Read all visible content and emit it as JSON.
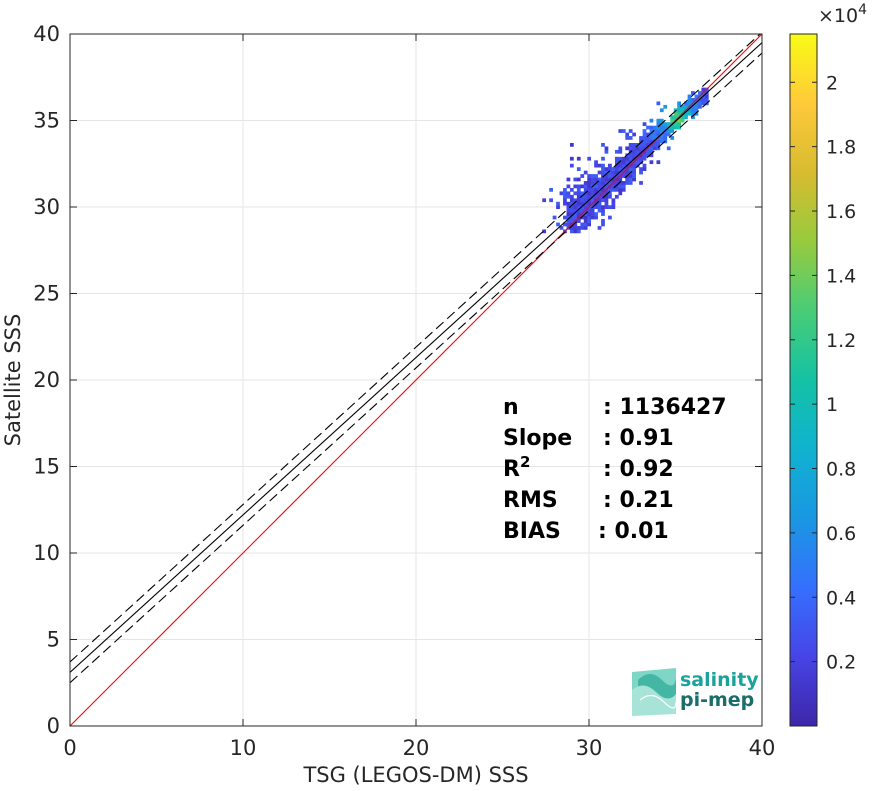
{
  "chart_data": {
    "type": "heatmap",
    "xlabel": "TSG (LEGOS-DM) SSS",
    "ylabel": "Satellite SSS",
    "xlim": [
      0,
      40
    ],
    "ylim": [
      0,
      40
    ],
    "x_ticks": [
      "0",
      "10",
      "20",
      "30",
      "40"
    ],
    "y_ticks": [
      "0",
      "5",
      "10",
      "15",
      "20",
      "25",
      "30",
      "35",
      "40"
    ],
    "grid": true,
    "colorbar": {
      "range": [
        0,
        21500
      ],
      "multiplier": "×10",
      "multiplier_exponent": "4",
      "tick_values": [
        0.2,
        0.4,
        0.6,
        0.8,
        1.0,
        1.2,
        1.4,
        1.6,
        1.8,
        2.0
      ],
      "tick_labels": [
        "0.2",
        "0.4",
        "0.6",
        "0.8",
        "1",
        "1.2",
        "1.4",
        "1.6",
        "1.8",
        "2"
      ],
      "colormap": "parula"
    },
    "density_cluster": {
      "x_range": [
        25.5,
        36.8
      ],
      "y_range": [
        28.5,
        36.8
      ],
      "peak_location": [
        35.0,
        35.0
      ]
    },
    "lines": [
      {
        "role": "identity",
        "slope": 1.0,
        "intercept": 0.0,
        "color": "#ff0000",
        "style": "solid"
      },
      {
        "role": "fit",
        "slope": 0.91,
        "intercept": 3.1,
        "color": "#000000",
        "style": "solid"
      },
      {
        "role": "fit_upper",
        "slope": 0.91,
        "intercept": 3.7,
        "color": "#000000",
        "style": "dashed"
      },
      {
        "role": "fit_lower",
        "slope": 0.91,
        "intercept": 2.5,
        "color": "#000000",
        "style": "dashed"
      }
    ],
    "stats": [
      {
        "label": "n",
        "sup": "",
        "value": ": 1136427"
      },
      {
        "label": "Slope",
        "sup": "",
        "value": ": 0.91"
      },
      {
        "label": "R",
        "sup": "2",
        "value": ": 0.92"
      },
      {
        "label": "RMS",
        "sup": "",
        "value": ": 0.21"
      },
      {
        "label": "BIAS",
        "sup": "",
        "value": ": 0.01"
      }
    ]
  },
  "logo": {
    "line1": "salinity",
    "line2": "pi-mep",
    "color": "#1a8c86"
  }
}
